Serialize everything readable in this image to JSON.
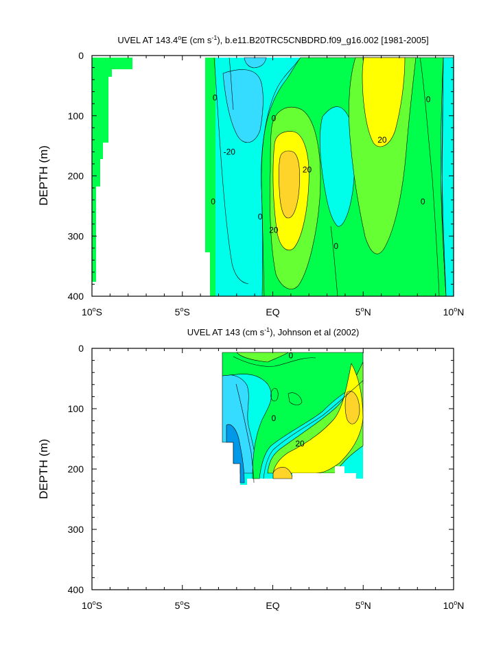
{
  "chart_data": [
    {
      "type": "contour",
      "title_parts": {
        "pre": "UVEL AT 143.4",
        "deg": "o",
        "mid": "E (cm s",
        "sup": "-1",
        "post": "), b.e11.B20TRC5CNBDRD.f09_g16.002 [1981-2005]"
      },
      "xlabel": "",
      "ylabel": "DEPTH (m)",
      "xlim": [
        -10,
        10
      ],
      "ylim": [
        400,
        0
      ],
      "x_ticks": [
        {
          "value": -10,
          "num": "10",
          "deg": "o",
          "dir": "S"
        },
        {
          "value": -5,
          "num": "5",
          "deg": "o",
          "dir": "S"
        },
        {
          "value": 0,
          "num": "EQ",
          "deg": "",
          "dir": ""
        },
        {
          "value": 5,
          "num": "5",
          "deg": "o",
          "dir": "N"
        },
        {
          "value": 10,
          "num": "10",
          "deg": "o",
          "dir": "N"
        }
      ],
      "y_ticks": [
        0,
        100,
        200,
        300,
        400
      ],
      "contour_labels": [
        {
          "x": -3.2,
          "y": 70,
          "text": "0"
        },
        {
          "x": -2.4,
          "y": 160,
          "text": "-20"
        },
        {
          "x": 0.05,
          "y": 104,
          "text": "0"
        },
        {
          "x": 1.9,
          "y": 190,
          "text": "20"
        },
        {
          "x": -0.7,
          "y": 268,
          "text": "0"
        },
        {
          "x": 0.05,
          "y": 290,
          "text": "20"
        },
        {
          "x": 3.5,
          "y": 317,
          "text": "0"
        },
        {
          "x": 6.05,
          "y": 140,
          "text": "20"
        },
        {
          "x": 8.6,
          "y": 73,
          "text": "0"
        },
        {
          "x": 8.3,
          "y": 243,
          "text": "0"
        },
        {
          "x": -3.3,
          "y": 243,
          "text": "0"
        }
      ],
      "fill_colors": {
        "below_-20": "#0098e8",
        "-20_to_-10": "#36dcff",
        "-10_to_0": "#00ffea",
        "0_to_10": "#00ff4c",
        "10_to_20": "#66ff33",
        "20_to_30": "#ffff00",
        "above_30": "#ffd42a"
      }
    },
    {
      "type": "contour",
      "title_parts": {
        "pre": "UVEL AT 143 (cm s",
        "sup": "-1",
        "post": "), Johnson et al (2002)"
      },
      "xlabel": "",
      "ylabel": "DEPTH (m)",
      "xlim": [
        -10,
        10
      ],
      "ylim": [
        400,
        0
      ],
      "x_ticks": [
        {
          "value": -10,
          "num": "10",
          "deg": "o",
          "dir": "S"
        },
        {
          "value": -5,
          "num": "5",
          "deg": "o",
          "dir": "S"
        },
        {
          "value": 0,
          "num": "EQ",
          "deg": "",
          "dir": ""
        },
        {
          "value": 5,
          "num": "5",
          "deg": "o",
          "dir": "N"
        },
        {
          "value": 10,
          "num": "10",
          "deg": "o",
          "dir": "N"
        }
      ],
      "y_ticks": [
        0,
        100,
        200,
        300,
        400
      ],
      "contour_labels": [
        {
          "x": 1.0,
          "y": 12,
          "text": "0"
        },
        {
          "x": 0.05,
          "y": 116,
          "text": "0"
        },
        {
          "x": 1.5,
          "y": 158,
          "text": "20"
        }
      ],
      "data_extent": {
        "x": [
          -2.8,
          5.0
        ],
        "y": [
          10,
          225
        ]
      }
    }
  ]
}
